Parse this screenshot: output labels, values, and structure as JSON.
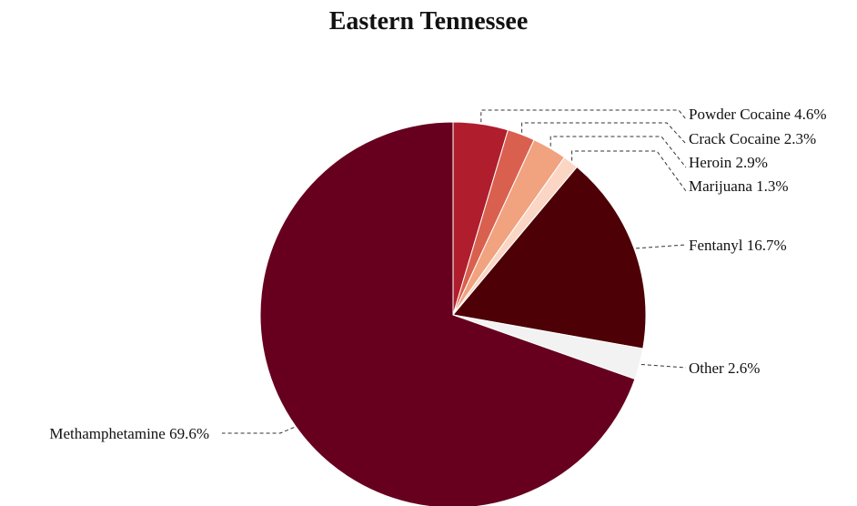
{
  "chart_data": {
    "type": "pie",
    "title": "Eastern Tennessee",
    "slices": [
      {
        "label": "Powder Cocaine",
        "value": 4.6,
        "display": "Powder Cocaine 4.6%",
        "color": "#b01e2d"
      },
      {
        "label": "Crack Cocaine",
        "value": 2.3,
        "display": "Crack Cocaine 2.3%",
        "color": "#d9604f"
      },
      {
        "label": "Heroin",
        "value": 2.9,
        "display": "Heroin 2.9%",
        "color": "#f1a27f"
      },
      {
        "label": "Marijuana",
        "value": 1.3,
        "display": "Marijuana 1.3%",
        "color": "#fbd6c4"
      },
      {
        "label": "Fentanyl",
        "value": 16.7,
        "display": "Fentanyl 16.7%",
        "color": "#4d0005"
      },
      {
        "label": "Other",
        "value": 2.6,
        "display": "Other 2.6%",
        "color": "#f2f2f2"
      },
      {
        "label": "Methamphetamine",
        "value": 69.6,
        "display": "Methamphetamine 69.6%",
        "color": "#66001e"
      }
    ]
  }
}
